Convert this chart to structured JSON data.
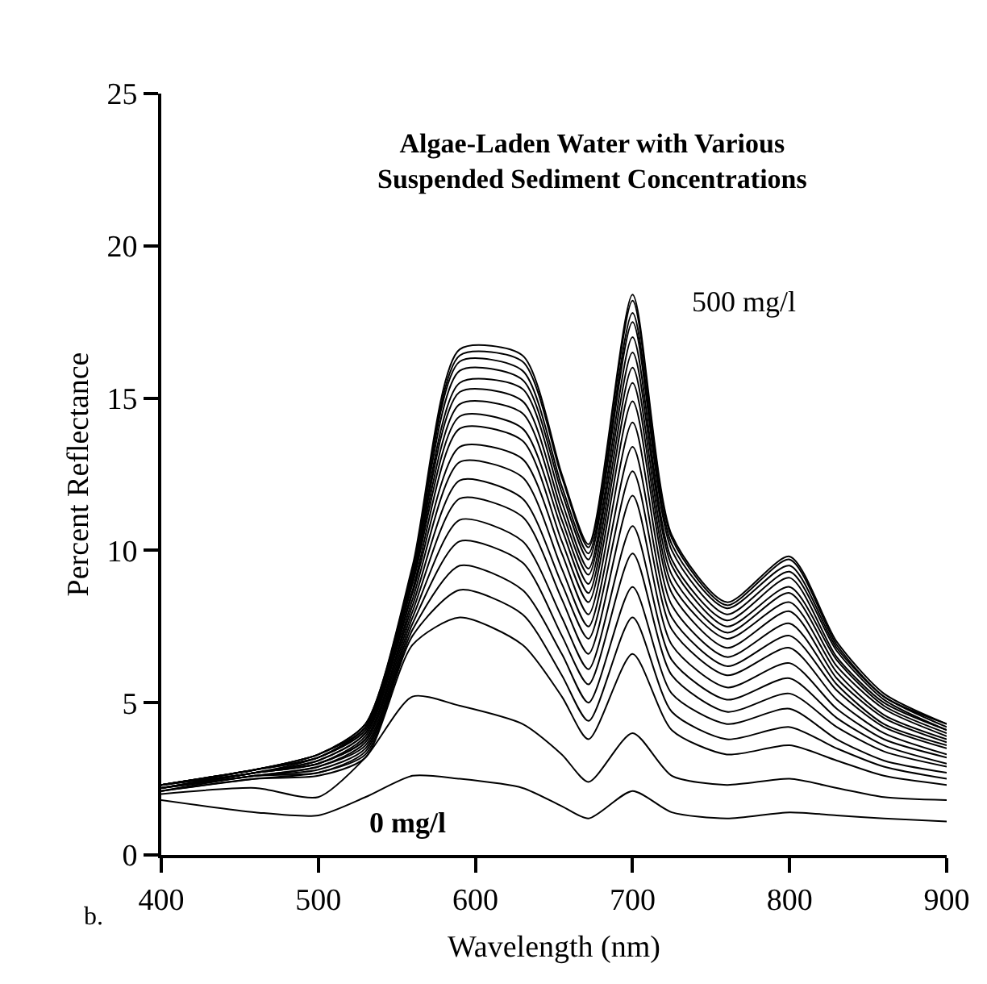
{
  "chart_data": {
    "type": "line",
    "title": "Algae-Laden Water with Various\nSuspended Sediment Concentrations",
    "xlabel": "Wavelength (nm)",
    "ylabel": "Percent Reflectance",
    "annotations": [
      "500 mg/l",
      "0 mg/l",
      "b."
    ],
    "x": [
      400,
      460,
      500,
      530,
      560,
      590,
      630,
      655,
      672,
      700,
      725,
      760,
      800,
      830,
      860,
      900
    ],
    "xlim": [
      400,
      900
    ],
    "xticks": [
      400,
      500,
      600,
      700,
      800,
      900
    ],
    "ylim": [
      0,
      25
    ],
    "yticks": [
      0,
      5,
      10,
      15,
      20,
      25
    ],
    "grid": false,
    "marker": "none",
    "line_style": "solid",
    "series": [
      {
        "color": "#000000",
        "values": [
          1.8,
          1.4,
          1.3,
          1.9,
          2.6,
          2.5,
          2.2,
          1.6,
          1.2,
          2.1,
          1.4,
          1.2,
          1.4,
          1.3,
          1.2,
          1.1
        ]
      },
      {
        "color": "#000000",
        "values": [
          2.0,
          2.2,
          1.9,
          3.2,
          5.2,
          4.9,
          4.3,
          3.3,
          2.4,
          4.0,
          2.6,
          2.3,
          2.5,
          2.2,
          1.9,
          1.8
        ]
      },
      {
        "color": "#000000",
        "values": [
          2.1,
          2.5,
          2.6,
          3.2,
          6.9,
          7.8,
          6.9,
          5.2,
          3.8,
          6.6,
          4.1,
          3.3,
          3.6,
          3.1,
          2.6,
          2.3
        ]
      },
      {
        "color": "#000000",
        "values": [
          2.1,
          2.5,
          2.7,
          3.3,
          7.2,
          8.7,
          7.9,
          5.9,
          4.4,
          7.8,
          4.7,
          3.8,
          4.2,
          3.5,
          2.9,
          2.5
        ]
      },
      {
        "color": "#000000",
        "values": [
          2.1,
          2.6,
          2.7,
          3.4,
          7.4,
          9.5,
          8.7,
          6.6,
          5.0,
          8.8,
          5.3,
          4.3,
          4.8,
          3.8,
          3.1,
          2.7
        ]
      },
      {
        "color": "#000000",
        "values": [
          2.2,
          2.6,
          2.8,
          3.5,
          7.6,
          10.3,
          9.6,
          7.2,
          5.6,
          9.9,
          5.9,
          4.7,
          5.3,
          4.2,
          3.4,
          2.9
        ]
      },
      {
        "color": "#000000",
        "values": [
          2.2,
          2.6,
          2.9,
          3.6,
          7.8,
          11.0,
          10.3,
          7.8,
          6.1,
          10.8,
          6.4,
          5.1,
          5.8,
          4.5,
          3.6,
          3.0
        ]
      },
      {
        "color": "#000000",
        "values": [
          2.2,
          2.6,
          2.9,
          3.7,
          8.0,
          11.7,
          11.1,
          8.4,
          6.6,
          11.8,
          6.9,
          5.5,
          6.3,
          4.8,
          3.8,
          3.2
        ]
      },
      {
        "color": "#000000",
        "values": [
          2.2,
          2.7,
          3.0,
          3.8,
          8.2,
          12.3,
          11.7,
          8.9,
          7.1,
          12.6,
          7.4,
          5.9,
          6.8,
          5.1,
          4.0,
          3.3
        ]
      },
      {
        "color": "#000000",
        "values": [
          2.2,
          2.7,
          3.0,
          3.8,
          8.4,
          12.9,
          12.4,
          9.4,
          7.5,
          13.4,
          7.8,
          6.2,
          7.2,
          5.4,
          4.2,
          3.5
        ]
      },
      {
        "color": "#000000",
        "values": [
          2.2,
          2.7,
          3.0,
          3.9,
          8.6,
          13.4,
          13.0,
          9.9,
          7.9,
          14.2,
          8.2,
          6.5,
          7.6,
          5.6,
          4.3,
          3.6
        ]
      },
      {
        "color": "#000000",
        "values": [
          2.2,
          2.7,
          3.1,
          4.0,
          8.7,
          14.0,
          13.6,
          10.3,
          8.3,
          14.9,
          8.6,
          6.8,
          8.0,
          5.8,
          4.5,
          3.7
        ]
      },
      {
        "color": "#000000",
        "values": [
          2.3,
          2.7,
          3.1,
          4.0,
          8.9,
          14.4,
          14.0,
          10.7,
          8.6,
          15.5,
          8.9,
          7.1,
          8.3,
          6.0,
          4.6,
          3.8
        ]
      },
      {
        "color": "#000000",
        "values": [
          2.3,
          2.7,
          3.2,
          4.1,
          9.0,
          14.8,
          14.5,
          11.0,
          8.9,
          16.0,
          9.2,
          7.3,
          8.6,
          6.2,
          4.8,
          3.9
        ]
      },
      {
        "color": "#000000",
        "values": [
          2.3,
          2.8,
          3.2,
          4.1,
          9.1,
          15.2,
          14.9,
          11.3,
          9.2,
          16.5,
          9.5,
          7.5,
          8.8,
          6.4,
          4.9,
          4.0
        ]
      },
      {
        "color": "#000000",
        "values": [
          2.3,
          2.8,
          3.2,
          4.2,
          9.2,
          15.5,
          15.3,
          11.6,
          9.4,
          17.0,
          9.7,
          7.7,
          9.1,
          6.5,
          5.0,
          4.1
        ]
      },
      {
        "color": "#000000",
        "values": [
          2.3,
          2.8,
          3.2,
          4.2,
          9.3,
          15.9,
          15.6,
          11.9,
          9.7,
          17.5,
          10.0,
          7.9,
          9.3,
          6.7,
          5.1,
          4.1
        ]
      },
      {
        "color": "#000000",
        "values": [
          2.3,
          2.8,
          3.3,
          4.2,
          9.4,
          16.2,
          15.9,
          12.1,
          9.9,
          17.8,
          10.2,
          8.1,
          9.5,
          6.8,
          5.2,
          4.2
        ]
      },
      {
        "color": "#000000",
        "values": [
          2.3,
          2.8,
          3.3,
          4.3,
          9.4,
          16.4,
          16.2,
          12.4,
          10.1,
          18.2,
          10.4,
          8.2,
          9.7,
          6.9,
          5.2,
          4.3
        ]
      },
      {
        "color": "#000000",
        "values": [
          2.3,
          2.8,
          3.3,
          4.3,
          9.5,
          16.6,
          16.4,
          12.5,
          10.2,
          18.4,
          10.5,
          8.3,
          9.8,
          7.0,
          5.3,
          4.3
        ]
      }
    ]
  }
}
